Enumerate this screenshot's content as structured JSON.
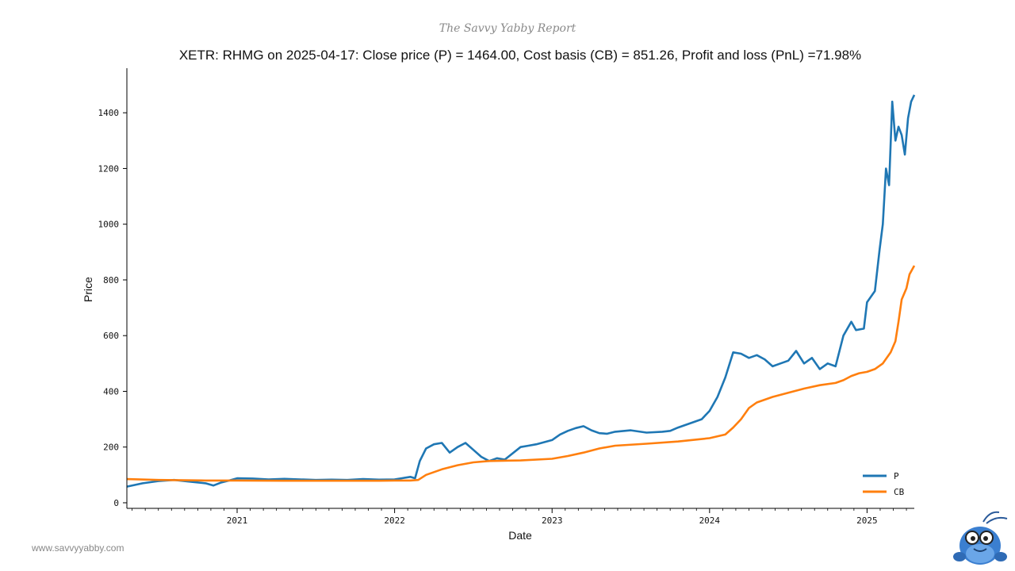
{
  "header": {
    "brand": "The Savvy Yabby Report"
  },
  "footer": {
    "url": "www.savvyyabby.com"
  },
  "mascot": {
    "icon": "yabby-mascot-icon"
  },
  "colors": {
    "price": "#1f77b4",
    "cost_basis": "#ff7f0e",
    "axis": "#000000"
  },
  "chart_data": {
    "type": "line",
    "title": "XETR: RHMG on 2025-04-17: Close price (P) = 1464.00, Cost basis (CB) = 851.26, Profit and loss (PnL) =71.98%",
    "xlabel": "Date",
    "ylabel": "Price",
    "xlim": [
      2020.3,
      2025.3
    ],
    "ylim": [
      -20,
      1560
    ],
    "x_ticks": [
      2021,
      2022,
      2023,
      2024,
      2025
    ],
    "x_tick_labels": [
      "2021",
      "2022",
      "2023",
      "2024",
      "2025"
    ],
    "y_ticks": [
      0,
      200,
      400,
      600,
      800,
      1000,
      1200,
      1400
    ],
    "y_tick_labels": [
      "0",
      "200",
      "400",
      "600",
      "800",
      "1000",
      "1200",
      "1400"
    ],
    "legend": {
      "position": "bottom-right",
      "entries": [
        "P",
        "CB"
      ]
    },
    "series": [
      {
        "name": "P",
        "x": [
          2020.3,
          2020.4,
          2020.5,
          2020.6,
          2020.7,
          2020.8,
          2020.85,
          2020.9,
          2020.95,
          2021.0,
          2021.1,
          2021.2,
          2021.3,
          2021.4,
          2021.5,
          2021.6,
          2021.7,
          2021.8,
          2021.9,
          2022.0,
          2022.1,
          2022.13,
          2022.16,
          2022.2,
          2022.25,
          2022.3,
          2022.35,
          2022.4,
          2022.45,
          2022.5,
          2022.55,
          2022.6,
          2022.65,
          2022.7,
          2022.8,
          2022.85,
          2022.9,
          2023.0,
          2023.05,
          2023.1,
          2023.15,
          2023.2,
          2023.25,
          2023.3,
          2023.35,
          2023.4,
          2023.5,
          2023.6,
          2023.7,
          2023.75,
          2023.8,
          2023.9,
          2023.95,
          2024.0,
          2024.05,
          2024.1,
          2024.15,
          2024.2,
          2024.25,
          2024.3,
          2024.35,
          2024.4,
          2024.45,
          2024.5,
          2024.55,
          2024.6,
          2024.65,
          2024.7,
          2024.75,
          2024.8,
          2024.85,
          2024.9,
          2024.93,
          2024.98,
          2025.0,
          2025.05,
          2025.08,
          2025.1,
          2025.12,
          2025.14,
          2025.16,
          2025.18,
          2025.2,
          2025.22,
          2025.24,
          2025.26,
          2025.28,
          2025.3
        ],
        "values": [
          58,
          70,
          78,
          82,
          76,
          70,
          62,
          73,
          80,
          88,
          87,
          84,
          86,
          84,
          82,
          83,
          82,
          85,
          83,
          84,
          93,
          88,
          150,
          195,
          210,
          215,
          180,
          200,
          215,
          190,
          165,
          150,
          160,
          155,
          200,
          205,
          210,
          225,
          245,
          258,
          268,
          275,
          260,
          250,
          248,
          255,
          260,
          252,
          255,
          258,
          270,
          290,
          300,
          330,
          380,
          450,
          540,
          535,
          520,
          530,
          515,
          490,
          500,
          510,
          545,
          500,
          520,
          480,
          500,
          490,
          600,
          650,
          620,
          625,
          720,
          760,
          910,
          1000,
          1200,
          1140,
          1440,
          1300,
          1350,
          1320,
          1250,
          1380,
          1440,
          1464
        ]
      },
      {
        "name": "CB",
        "x": [
          2020.3,
          2020.5,
          2020.8,
          2021.0,
          2021.3,
          2021.6,
          2021.9,
          2022.0,
          2022.1,
          2022.15,
          2022.2,
          2022.3,
          2022.4,
          2022.5,
          2022.6,
          2022.8,
          2023.0,
          2023.1,
          2023.2,
          2023.3,
          2023.4,
          2023.6,
          2023.8,
          2024.0,
          2024.1,
          2024.15,
          2024.2,
          2024.25,
          2024.3,
          2024.4,
          2024.5,
          2024.6,
          2024.7,
          2024.8,
          2024.85,
          2024.9,
          2024.95,
          2025.0,
          2025.05,
          2025.1,
          2025.15,
          2025.18,
          2025.2,
          2025.22,
          2025.25,
          2025.27,
          2025.3
        ],
        "values": [
          85,
          82,
          80,
          80,
          79,
          79,
          79,
          80,
          80,
          82,
          100,
          120,
          135,
          145,
          150,
          152,
          158,
          168,
          180,
          195,
          205,
          212,
          220,
          232,
          245,
          270,
          300,
          340,
          360,
          380,
          395,
          410,
          422,
          430,
          440,
          455,
          465,
          470,
          480,
          500,
          540,
          580,
          650,
          730,
          770,
          820,
          851
        ]
      }
    ]
  }
}
